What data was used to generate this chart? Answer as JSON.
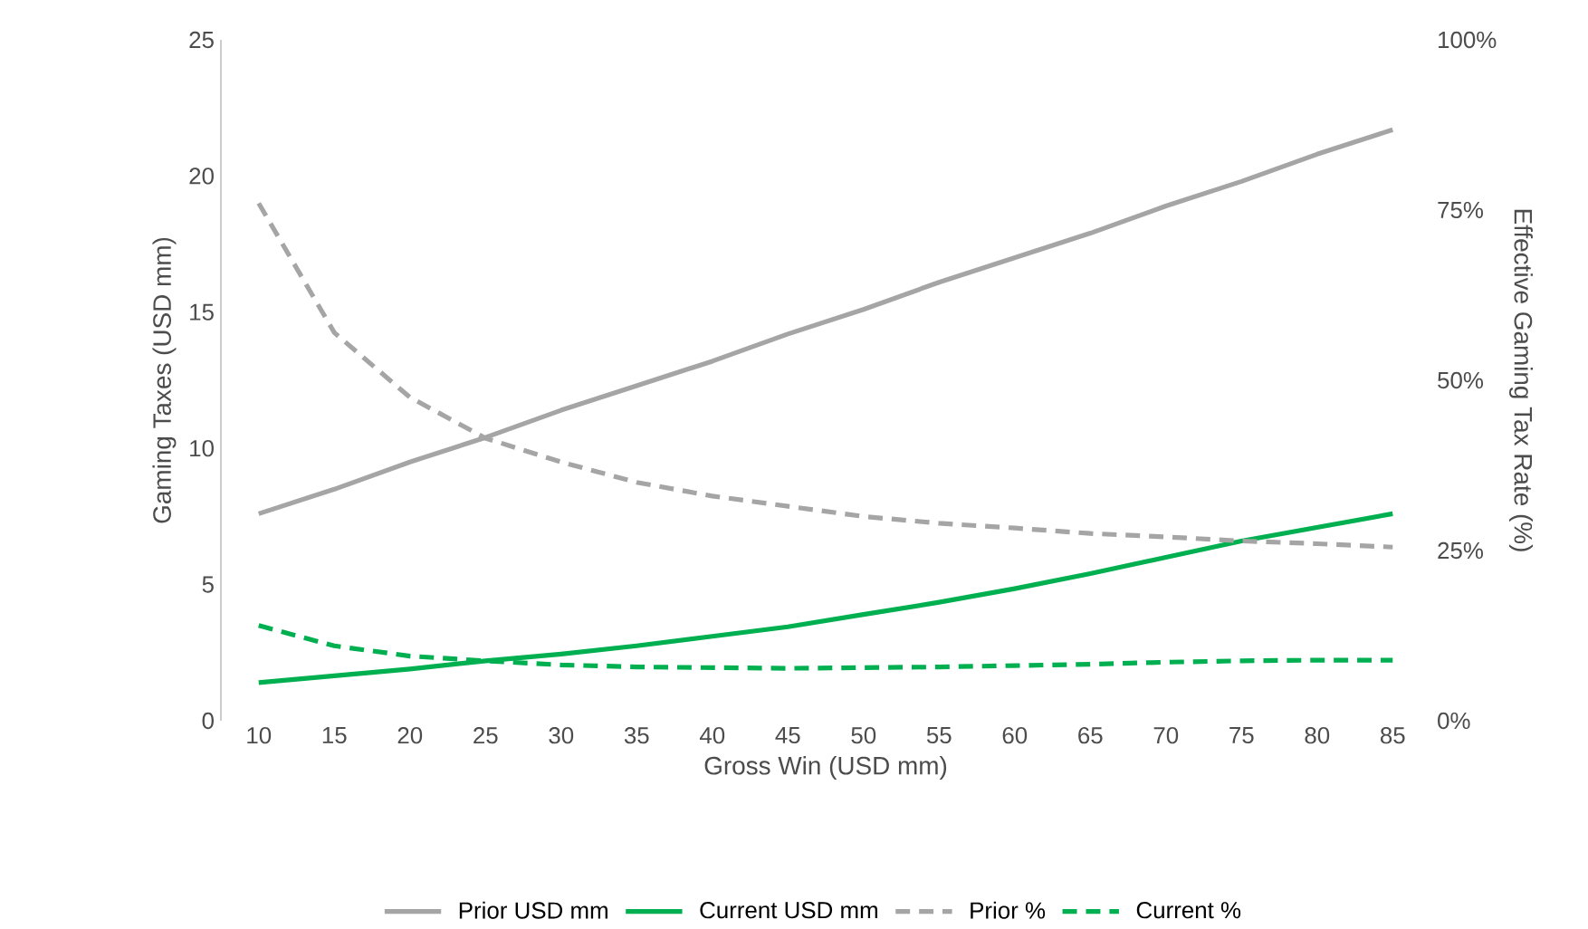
{
  "chart_data": {
    "type": "line",
    "xlabel": "Gross Win (USD mm)",
    "ylabel": "Gaming Taxes (USD mm)",
    "y2label": "Effective Gaming Tax Rate (%)",
    "categories": [
      "10",
      "15",
      "20",
      "25",
      "30",
      "35",
      "40",
      "45",
      "50",
      "55",
      "60",
      "65",
      "70",
      "75",
      "80",
      "85"
    ],
    "ylim": [
      0,
      25
    ],
    "yticks": [
      0,
      5,
      10,
      15,
      20,
      25
    ],
    "y2lim": [
      0,
      100
    ],
    "y2ticks": [
      {
        "value": 0,
        "label": "0%"
      },
      {
        "value": 25,
        "label": "25%"
      },
      {
        "value": 50,
        "label": "50%"
      },
      {
        "value": 75,
        "label": "75%"
      },
      {
        "value": 100,
        "label": "100%"
      }
    ],
    "legend": "bottom",
    "series": [
      {
        "name": "Prior USD mm",
        "color": "#a5a5a5",
        "line_style": "solid",
        "values": [
          7.6,
          8.5,
          9.5,
          10.4,
          11.4,
          12.3,
          13.2,
          14.2,
          15.1,
          16.1,
          17.0,
          17.9,
          18.9,
          19.8,
          20.8,
          21.7
        ]
      },
      {
        "name": "Current USD mm",
        "color": "#00b050",
        "line_style": "solid",
        "values": [
          1.4,
          1.65,
          1.9,
          2.2,
          2.45,
          2.75,
          3.1,
          3.45,
          3.9,
          4.35,
          4.85,
          5.4,
          6.0,
          6.6,
          7.1,
          7.6
        ]
      },
      {
        "name": "Prior %",
        "color": "#a5a5a5",
        "line_style": "dashed",
        "axis": "y2",
        "values": [
          76,
          57,
          47.5,
          41.5,
          38,
          35,
          33,
          31.5,
          30,
          29,
          28.3,
          27.5,
          27,
          26.4,
          26,
          25.5
        ]
      },
      {
        "name": "Current %",
        "color": "#00b050",
        "line_style": "dashed",
        "axis": "y2",
        "values": [
          14,
          11,
          9.5,
          8.8,
          8.2,
          7.9,
          7.8,
          7.7,
          7.8,
          7.9,
          8.1,
          8.3,
          8.6,
          8.8,
          8.9,
          8.9
        ]
      }
    ]
  }
}
